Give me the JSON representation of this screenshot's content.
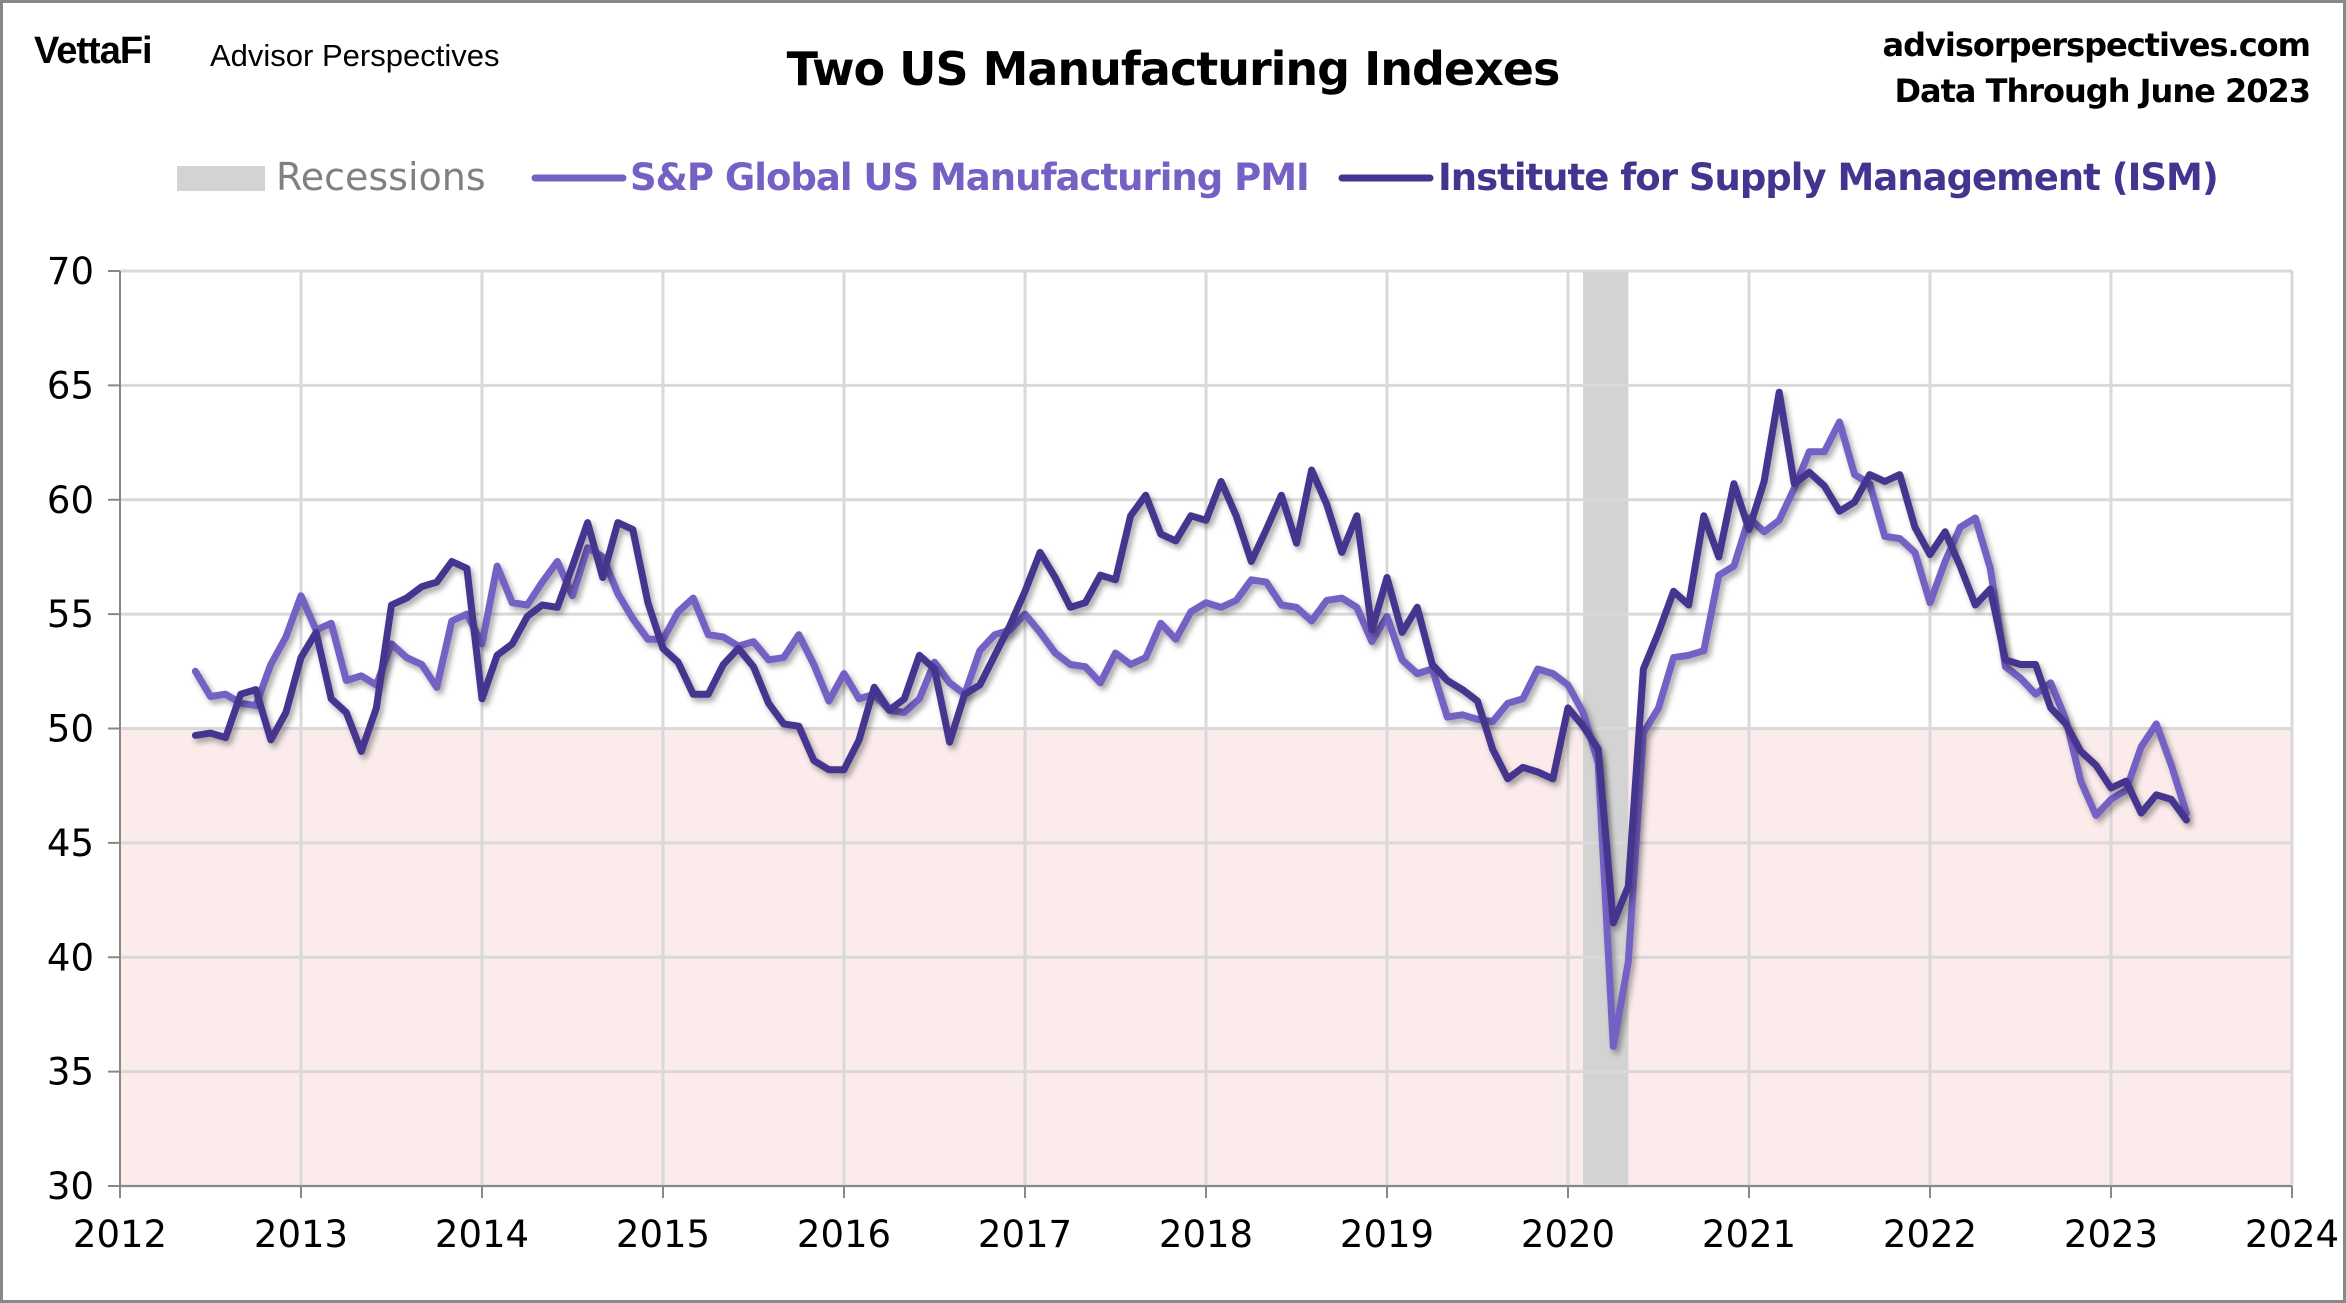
{
  "header": {
    "logo": "VettaFi",
    "brand": "Advisor Perspectives",
    "site": "advisorperspectives.com",
    "data_through": "Data Through  June 2023"
  },
  "colors": {
    "sp": "#7560C4",
    "ism": "#45348F",
    "recession": "#D3D3D3",
    "below50": "#FBEBEB",
    "grid": "#D9D9D9"
  },
  "chart_data": {
    "type": "line",
    "title": "Two US Manufacturing Indexes",
    "xlabel": "",
    "ylabel": "",
    "xlim": [
      2012,
      2024
    ],
    "ylim": [
      30,
      70
    ],
    "x_ticks": [
      "2012",
      "2013",
      "2014",
      "2015",
      "2016",
      "2017",
      "2018",
      "2019",
      "2020",
      "2021",
      "2022",
      "2023",
      "2024"
    ],
    "y_ticks": [
      "30",
      "35",
      "40",
      "45",
      "50",
      "55",
      "60",
      "65",
      "70"
    ],
    "grid": true,
    "legend_position": "top",
    "shaded_below": 50,
    "start": "2012-06",
    "frequency": "monthly",
    "recessions": [
      {
        "label": "Recessions",
        "start": "2020-02",
        "end": "2020-04"
      }
    ],
    "series": [
      {
        "name": "S&P Global US Manufacturing PMI",
        "values": [
          52.5,
          51.4,
          51.5,
          51.1,
          51.0,
          52.8,
          54.0,
          55.8,
          54.3,
          54.6,
          52.1,
          52.3,
          51.9,
          53.7,
          53.1,
          52.8,
          51.8,
          54.7,
          55.0,
          53.7,
          57.1,
          55.5,
          55.4,
          56.4,
          57.3,
          55.8,
          57.9,
          57.5,
          55.9,
          54.8,
          53.9,
          53.9,
          55.1,
          55.7,
          54.1,
          54.0,
          53.6,
          53.8,
          53.0,
          53.1,
          54.1,
          52.8,
          51.2,
          52.4,
          51.3,
          51.5,
          50.8,
          50.7,
          51.3,
          52.9,
          52.0,
          51.5,
          53.4,
          54.1,
          54.3,
          55.0,
          54.2,
          53.3,
          52.8,
          52.7,
          52.0,
          53.3,
          52.8,
          53.1,
          54.6,
          53.9,
          55.1,
          55.5,
          55.3,
          55.6,
          56.5,
          56.4,
          55.4,
          55.3,
          54.7,
          55.6,
          55.7,
          55.3,
          53.8,
          54.9,
          53.0,
          52.4,
          52.6,
          50.5,
          50.6,
          50.4,
          50.3,
          51.1,
          51.3,
          52.6,
          52.4,
          51.9,
          50.7,
          48.5,
          36.1,
          39.8,
          49.8,
          50.9,
          53.1,
          53.2,
          53.4,
          56.7,
          57.1,
          59.2,
          58.6,
          59.1,
          60.5,
          62.1,
          62.1,
          63.4,
          61.1,
          60.7,
          58.4,
          58.3,
          57.7,
          55.5,
          57.3,
          58.8,
          59.2,
          57.0,
          52.7,
          52.2,
          51.5,
          52.0,
          50.4,
          47.7,
          46.2,
          46.9,
          47.3,
          49.2,
          50.2,
          48.4,
          46.3
        ]
      },
      {
        "name": "Institute for Supply Management (ISM)",
        "values": [
          49.7,
          49.8,
          49.6,
          51.5,
          51.7,
          49.5,
          50.7,
          53.1,
          54.2,
          51.3,
          50.7,
          49.0,
          50.9,
          55.4,
          55.7,
          56.2,
          56.4,
          57.3,
          57.0,
          51.3,
          53.2,
          53.7,
          54.9,
          55.4,
          55.3,
          57.1,
          59.0,
          56.6,
          59.0,
          58.7,
          55.5,
          53.5,
          52.9,
          51.5,
          51.5,
          52.8,
          53.5,
          52.7,
          51.1,
          50.2,
          50.1,
          48.6,
          48.2,
          48.2,
          49.5,
          51.8,
          50.8,
          51.3,
          53.2,
          52.6,
          49.4,
          51.5,
          51.9,
          53.2,
          54.5,
          56.0,
          57.7,
          56.6,
          55.3,
          55.5,
          56.7,
          56.5,
          59.3,
          60.2,
          58.5,
          58.2,
          59.3,
          59.1,
          60.8,
          59.3,
          57.3,
          58.7,
          60.2,
          58.1,
          61.3,
          59.8,
          57.7,
          59.3,
          54.3,
          56.6,
          54.2,
          55.3,
          52.8,
          52.1,
          51.7,
          51.2,
          49.1,
          47.8,
          48.3,
          48.1,
          47.8,
          50.9,
          50.1,
          49.1,
          41.5,
          43.1,
          52.6,
          54.2,
          56.0,
          55.4,
          59.3,
          57.5,
          60.7,
          58.7,
          60.8,
          64.7,
          60.7,
          61.2,
          60.6,
          59.5,
          59.9,
          61.1,
          60.8,
          61.1,
          58.8,
          57.6,
          58.6,
          57.1,
          55.4,
          56.1,
          53.0,
          52.8,
          52.8,
          50.9,
          50.2,
          49.0,
          48.4,
          47.4,
          47.7,
          46.3,
          47.1,
          46.9,
          46.0
        ]
      }
    ]
  }
}
